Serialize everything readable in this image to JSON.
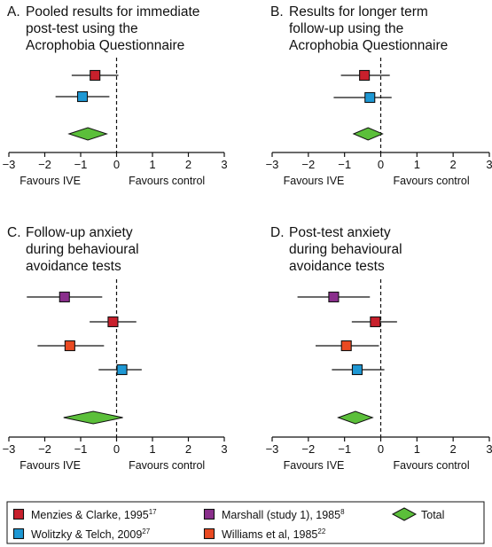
{
  "colors": {
    "menzies": "#c8202c",
    "wolitzky": "#1e98d4",
    "marshall": "#8a2f8c",
    "williams": "#ea4a22",
    "total": "#5bbf3a"
  },
  "chart_data": [
    {
      "type": "forest",
      "letter": "A.",
      "title_lines": [
        "Pooled results for immediate",
        "post-test using the",
        "Acrophobia Questionnaire"
      ],
      "xlim": [
        -3,
        3
      ],
      "xticks": [
        -3,
        -2,
        -1,
        0,
        1,
        2,
        3
      ],
      "xlabels": [
        "Favours IVE",
        "Favours control"
      ],
      "studies": [
        {
          "study": "menzies",
          "estimate": -0.6,
          "ci": [
            -1.25,
            0.05
          ]
        },
        {
          "study": "wolitzky",
          "estimate": -0.95,
          "ci": [
            -1.7,
            -0.2
          ]
        }
      ],
      "total": {
        "estimate": -0.8,
        "ci": [
          -1.3,
          -0.25
        ]
      }
    },
    {
      "type": "forest",
      "letter": "B.",
      "title_lines": [
        "Results for longer term",
        "follow-up using the",
        "Acrophobia Questionnaire"
      ],
      "xlim": [
        -3,
        3
      ],
      "xticks": [
        -3,
        -2,
        -1,
        0,
        1,
        2,
        3
      ],
      "xlabels": [
        "Favours IVE",
        "Favours control"
      ],
      "studies": [
        {
          "study": "menzies",
          "estimate": -0.45,
          "ci": [
            -1.1,
            0.25
          ]
        },
        {
          "study": "wolitzky",
          "estimate": -0.3,
          "ci": [
            -1.3,
            0.3
          ]
        }
      ],
      "total": {
        "estimate": -0.35,
        "ci": [
          -0.75,
          0.05
        ]
      }
    },
    {
      "type": "forest",
      "letter": "C.",
      "title_lines": [
        "Follow-up anxiety",
        "during behavioural",
        "avoidance tests"
      ],
      "xlim": [
        -3,
        3
      ],
      "xticks": [
        -3,
        -2,
        -1,
        0,
        1,
        2,
        3
      ],
      "xlabels": [
        "Favours IVE",
        "Favours control"
      ],
      "studies": [
        {
          "study": "marshall",
          "estimate": -1.45,
          "ci": [
            -2.5,
            -0.4
          ]
        },
        {
          "study": "menzies",
          "estimate": -0.1,
          "ci": [
            -0.75,
            0.55
          ]
        },
        {
          "study": "williams",
          "estimate": -1.3,
          "ci": [
            -2.2,
            -0.35
          ]
        },
        {
          "study": "wolitzky",
          "estimate": 0.15,
          "ci": [
            -0.5,
            0.7
          ]
        }
      ],
      "total": {
        "estimate": -0.65,
        "ci": [
          -1.45,
          0.2
        ]
      }
    },
    {
      "type": "forest",
      "letter": "D.",
      "title_lines": [
        "Post-test anxiety",
        "during behavioural",
        "avoidance tests"
      ],
      "xlim": [
        -3,
        3
      ],
      "xticks": [
        -3,
        -2,
        -1,
        0,
        1,
        2,
        3
      ],
      "xlabels": [
        "Favours IVE",
        "Favours control"
      ],
      "studies": [
        {
          "study": "marshall",
          "estimate": -1.3,
          "ci": [
            -2.3,
            -0.3
          ]
        },
        {
          "study": "menzies",
          "estimate": -0.15,
          "ci": [
            -0.8,
            0.45
          ]
        },
        {
          "study": "williams",
          "estimate": -0.95,
          "ci": [
            -1.8,
            -0.05
          ]
        },
        {
          "study": "wolitzky",
          "estimate": -0.65,
          "ci": [
            -1.35,
            0.1
          ]
        }
      ],
      "total": {
        "estimate": -0.7,
        "ci": [
          -1.15,
          -0.2
        ]
      }
    }
  ],
  "legend": {
    "items": [
      {
        "key": "menzies",
        "label": "Menzies & Clarke, 1995",
        "sup": "17"
      },
      {
        "key": "marshall",
        "label": "Marshall (study 1), 1985",
        "sup": "8"
      },
      {
        "key": "wolitzky",
        "label": "Wolitzky & Telch, 2009",
        "sup": "27"
      },
      {
        "key": "williams",
        "label": "Williams et al, 1985",
        "sup": "22"
      }
    ],
    "total_label": "Total"
  }
}
